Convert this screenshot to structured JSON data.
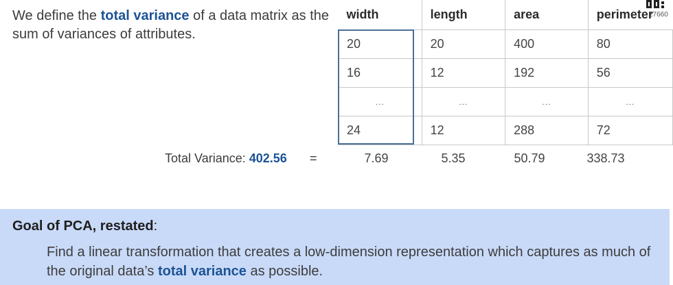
{
  "intro": {
    "text_1": "We define the ",
    "term": "total variance",
    "text_2": " of a data matrix as the sum of variances of attributes."
  },
  "corner": {
    "number": "27660"
  },
  "table": {
    "headers": [
      "width",
      "length",
      "area",
      "perimeter"
    ],
    "rows": [
      [
        "20",
        "20",
        "400",
        "80"
      ],
      [
        "16",
        "12",
        "192",
        "56"
      ],
      [
        "...",
        "...",
        "...",
        "..."
      ],
      [
        "24",
        "12",
        "288",
        "72"
      ]
    ]
  },
  "total_variance": {
    "label": "Total Variance: ",
    "value": "402.56",
    "equals": "=",
    "column_variances": [
      "7.69",
      "5.35",
      "50.79",
      "338.73"
    ]
  },
  "goal": {
    "title": "Goal of PCA, restated",
    "title_suffix": ":",
    "body_1": "Find a linear transformation that creates a low-dimension representation which captures as much of the original data’s ",
    "term": "total variance",
    "body_2": " as possible."
  },
  "colors": {
    "accent": "#1c5395",
    "goal_bg": "#c9daf8",
    "highlight_border": "#4a6f96"
  }
}
